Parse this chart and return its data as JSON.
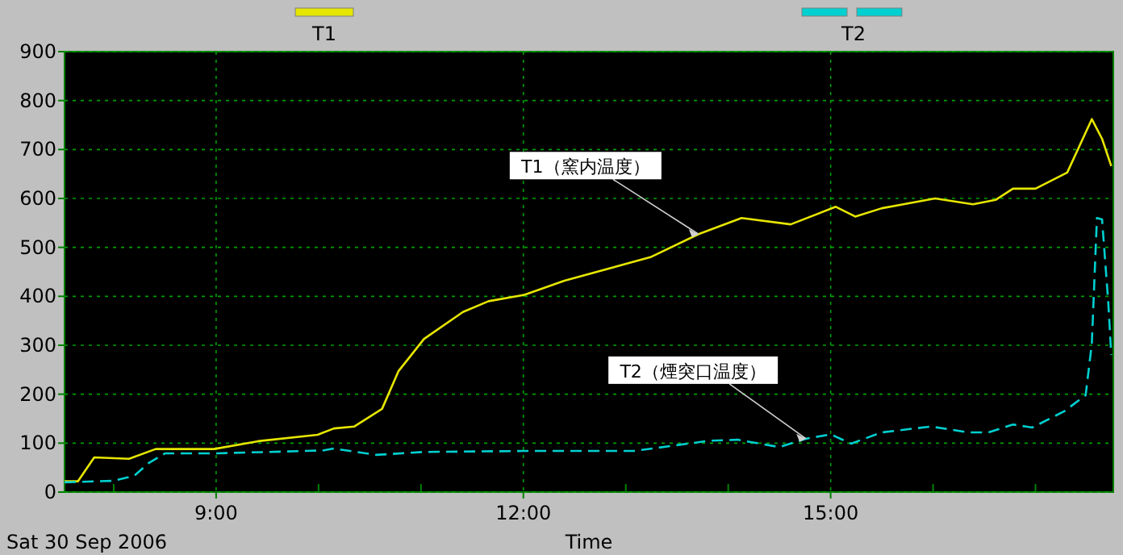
{
  "chart_data": {
    "type": "line",
    "xlabel": "Time",
    "legend": "top",
    "grid": true,
    "xlim": [
      7.52,
      17.76
    ],
    "xticks": [
      {
        "value": 8,
        "label": null
      },
      {
        "value": 9,
        "label": "9:00"
      },
      {
        "value": 10,
        "label": null
      },
      {
        "value": 11,
        "label": null
      },
      {
        "value": 12,
        "label": "12:00"
      },
      {
        "value": 13,
        "label": null
      },
      {
        "value": 14,
        "label": null
      },
      {
        "value": 15,
        "label": "15:00"
      },
      {
        "value": 16,
        "label": null
      },
      {
        "value": 17,
        "label": null
      }
    ],
    "ylim": [
      0,
      900
    ],
    "yticks": [
      0,
      100,
      200,
      300,
      400,
      500,
      600,
      700,
      800,
      900
    ],
    "annotations": [
      "Sat 30 Sep 2006",
      {
        "text": "T1（窯内温度）",
        "x": 13.71,
        "y": 527
      },
      {
        "text": "T2（煙突口温度）",
        "x": 14.76,
        "y": 109
      }
    ],
    "series": [
      {
        "name": "T1",
        "color": "#e6e600",
        "line_style": "solid",
        "x": [
          7.52,
          7.65,
          7.81,
          8.15,
          8.41,
          8.98,
          9.41,
          9.99,
          10.15,
          10.35,
          10.62,
          10.78,
          11.03,
          11.41,
          11.66,
          12.01,
          12.4,
          13.24,
          13.71,
          14.13,
          14.61,
          15.05,
          15.24,
          15.5,
          16.02,
          16.39,
          16.61,
          16.78,
          17.0,
          17.31,
          17.55,
          17.65,
          17.74
        ],
        "values": [
          22,
          22,
          71,
          68,
          88,
          88,
          104,
          117,
          130,
          134,
          170,
          247,
          313,
          368,
          390,
          403,
          432,
          480,
          527,
          560,
          547,
          583,
          563,
          580,
          600,
          588,
          597,
          620,
          620,
          653,
          762,
          722,
          666
        ]
      },
      {
        "name": "T2",
        "color": "#00d0d0",
        "line_style": "dashed",
        "x": [
          7.52,
          7.99,
          8.2,
          8.34,
          8.42,
          8.5,
          8.98,
          10.04,
          10.15,
          10.56,
          11.03,
          12.01,
          12.24,
          13.08,
          13.82,
          14.09,
          14.5,
          14.76,
          15.0,
          15.2,
          15.5,
          15.98,
          16.34,
          16.54,
          16.78,
          16.97,
          17.28,
          17.49,
          17.55,
          17.6,
          17.65,
          17.71,
          17.74
        ],
        "values": [
          20,
          23,
          33,
          59,
          69,
          79,
          79,
          85,
          89,
          76,
          82,
          84,
          84,
          84,
          105,
          107,
          92,
          109,
          118,
          99,
          122,
          134,
          122,
          122,
          138,
          132,
          165,
          198,
          303,
          560,
          557,
          390,
          280
        ]
      }
    ]
  }
}
